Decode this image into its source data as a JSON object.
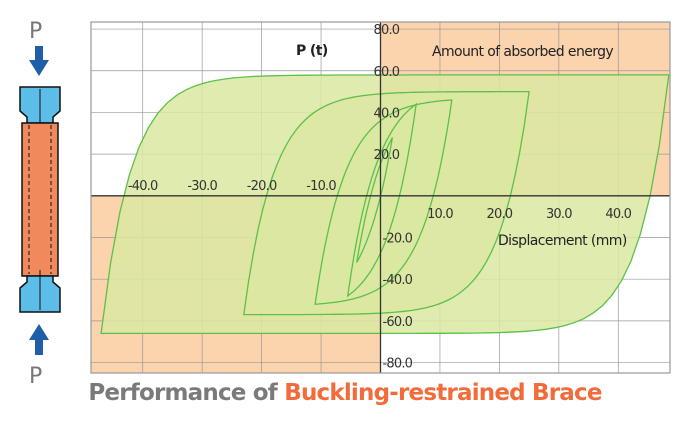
{
  "chart_data": {
    "type": "line",
    "title_prefix": "Performance of ",
    "title_highlight": "Buckling-restrained Brace",
    "xlabel": "Displacement (mm)",
    "ylabel": "P (t)",
    "annotation": "Amount of absorbed energy",
    "xlim": [
      -48.7,
      48.7
    ],
    "ylim": [
      -85,
      83.4
    ],
    "xticks": [
      -40,
      -30,
      -20,
      -10,
      10,
      20,
      30,
      40
    ],
    "xtick_labels": [
      "-40.0",
      "-30.0",
      "-20.0",
      "-10.0",
      "10.0",
      "20.0",
      "30.0",
      "40.0"
    ],
    "yticks": [
      80,
      60,
      40,
      20,
      -20,
      -40,
      -60,
      -80
    ],
    "ytick_labels": [
      "80.0",
      "60.0",
      "40.0",
      "20.0",
      "-20.0",
      "-40.0",
      "-60.0",
      "-80.0"
    ],
    "grid": true,
    "hysteresis_loops": [
      {
        "xmax": 48.5,
        "pmax": 58,
        "xmin": -47,
        "pmin": -66
      },
      {
        "xmax": 25,
        "pmax": 50,
        "xmin": -23,
        "pmin": -57
      },
      {
        "xmax": 12,
        "pmax": 46,
        "xmin": -11,
        "pmin": -52
      },
      {
        "xmax": 6,
        "pmax": 44,
        "xmin": -5.5,
        "pmin": -48
      },
      {
        "xmax": 2,
        "pmax": 28,
        "xmin": -4,
        "pmin": -32
      }
    ],
    "colors": {
      "loop_fill": "#dbe8a2",
      "loop_line": "#5cc04a",
      "quadrant_fill": "#fbd3ad",
      "grid": "#999999"
    }
  },
  "brace": {
    "load_label_top": "P",
    "load_label_bottom": "P"
  }
}
